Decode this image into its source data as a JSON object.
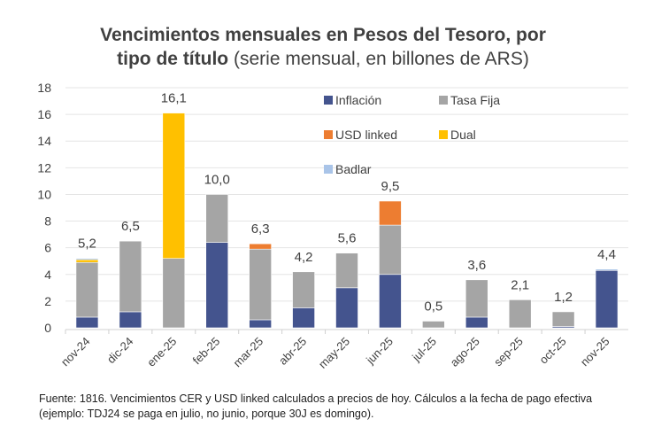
{
  "chart_data": {
    "type": "bar",
    "stacked": true,
    "title": "Vencimientos mensuales en Pesos del Tesoro, por tipo de título",
    "title_line1": "Vencimientos mensuales en Pesos del Tesoro, por",
    "title_line2_bold": "tipo de título",
    "subtitle": "(serie mensual, en billones de ARS)",
    "xlabel": "",
    "ylabel": "",
    "ylim": [
      0,
      18
    ],
    "yticks": [
      0,
      2,
      4,
      6,
      8,
      10,
      12,
      14,
      16,
      18
    ],
    "grid": true,
    "legend_position": "top-right",
    "categories": [
      "nov-24",
      "dic-24",
      "ene-25",
      "feb-25",
      "mar-25",
      "abr-25",
      "may-25",
      "jun-25",
      "jul-25",
      "ago-25",
      "sep-25",
      "oct-25",
      "nov-25"
    ],
    "totals_labels": [
      "5,2",
      "6,5",
      "16,1",
      "10,0",
      "6,3",
      "4,2",
      "5,6",
      "9,5",
      "0,5",
      "3,6",
      "2,1",
      "1,2",
      "4,4"
    ],
    "series": [
      {
        "name": "Inflación",
        "color": "#44548e",
        "values": [
          0.8,
          1.2,
          0,
          6.4,
          0.6,
          1.5,
          3.0,
          4.0,
          0,
          0.8,
          0,
          0.1,
          4.3
        ]
      },
      {
        "name": "Tasa Fija",
        "color": "#a5a5a5",
        "values": [
          4.1,
          5.3,
          5.2,
          3.6,
          5.3,
          2.7,
          2.6,
          3.7,
          0.5,
          2.8,
          2.1,
          1.1,
          0
        ]
      },
      {
        "name": "USD linked",
        "color": "#ed7d31",
        "values": [
          0,
          0,
          0,
          0,
          0.4,
          0,
          0,
          1.8,
          0,
          0,
          0,
          0,
          0
        ]
      },
      {
        "name": "Dual",
        "color": "#ffc000",
        "values": [
          0.2,
          0,
          10.9,
          0,
          0,
          0,
          0,
          0,
          0,
          0,
          0,
          0,
          0
        ]
      },
      {
        "name": "Badlar",
        "color": "#a9c4e8",
        "values": [
          0.1,
          0,
          0,
          0,
          0,
          0,
          0,
          0,
          0,
          0,
          0,
          0,
          0.1
        ]
      }
    ]
  },
  "footnote": "Fuente: 1816. Vencimientos CER y USD linked calculados a precios de hoy. Cálculos a la fecha de pago efectiva (ejemplo: TDJ24 se paga en julio, no junio, porque 30J es domingo)."
}
